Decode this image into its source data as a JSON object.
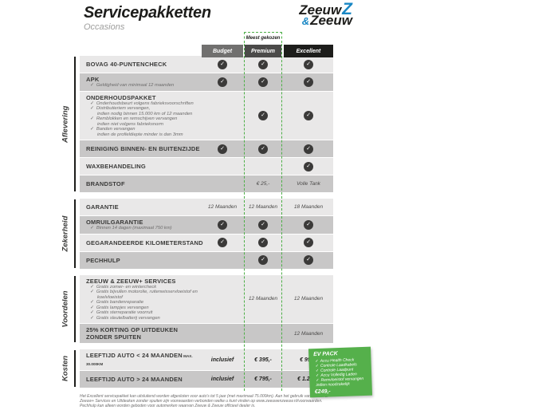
{
  "page": {
    "title": "Servicepakketten",
    "subtitle": "Occasions",
    "footer": "Het Excellent servicepakket kan uitsluitend worden afgesloten voor auto's tot 5 jaar (met maximaal 75.000km). Aan het gebruik van Zeeuw & Zeeuw+ Services en Uitdeuken zonder spuiten zijn voorwaarden verbonden welke u kunt vinden op www.zeeuwenzeeuw.nl/voorwaarden. Pechhulp kan alleen worden geboden voor automerken waarvan Zeeuw & Zeeuw officieel dealer is."
  },
  "logo": {
    "top_text": "Zeeuw",
    "z_mark": "Z",
    "amp": "&",
    "bottom_text": "Zeeuw",
    "blue": "#1987c4"
  },
  "colors": {
    "accent_green": "#4daf47",
    "light_row": "#e9e8e8",
    "dark_row": "#c8c7c7",
    "check_circle": "#3b3a39"
  },
  "table": {
    "badge": "Meest gekozen",
    "columns": [
      {
        "label": "Budget",
        "color": "#71706f"
      },
      {
        "label": "Premium",
        "color": "#4b4a49"
      },
      {
        "label": "Excellent",
        "color": "#1d1d1b"
      }
    ],
    "sections": [
      {
        "label": "Aflevering",
        "rows": [
          {
            "title": "BOVAG 40-PUNTENCHECK",
            "cells": [
              "check",
              "check",
              "check"
            ]
          },
          {
            "title": "APK",
            "subs": [
              [
                "Geldigheid van minimaal 12 maanden"
              ]
            ],
            "cells": [
              "check",
              "check",
              "check"
            ]
          },
          {
            "title": "ONDERHOUDSPAKKET",
            "subs": [
              [
                "Onderhoudsbeurt volgens fabrieksvoorschriften"
              ],
              [
                "Distributieriem vervangen,",
                "indien nodig binnen 15.000 km of 12 maanden"
              ],
              [
                "Remblokken en remschijven vervangen",
                "indien niet volgens fabrieksnorm"
              ],
              [
                "Banden vervangen",
                "indien de profieldiepte minder is dan 3mm"
              ]
            ],
            "cells": [
              "",
              "check",
              "check"
            ]
          },
          {
            "title": "REINIGING BINNEN- EN BUITENZIJDE",
            "cells": [
              "check",
              "check",
              "check"
            ]
          },
          {
            "title": "WAXBEHANDELING",
            "cells": [
              "",
              "",
              "check"
            ]
          },
          {
            "title": "BRANDSTOF",
            "cells": [
              "",
              "€ 25,-",
              "Volle Tank"
            ]
          }
        ]
      },
      {
        "label": "Zekerheid",
        "rows": [
          {
            "title": "GARANTIE",
            "cells": [
              "12 Maanden",
              "12 Maanden",
              "18 Maanden"
            ]
          },
          {
            "title": "OMRUILGARANTIE",
            "subs": [
              [
                "Binnen 14 dagen (maximaal 750 km)"
              ]
            ],
            "cells": [
              "check",
              "check",
              "check"
            ]
          },
          {
            "title": "GEGARANDEERDE KILOMETERSTAND",
            "cells": [
              "check",
              "check",
              "check"
            ]
          },
          {
            "title": "PECHHULP",
            "cells": [
              "",
              "check",
              "check"
            ]
          }
        ]
      },
      {
        "label": "Voordelen",
        "rows": [
          {
            "title": "ZEEUW & ZEEUW+ SERVICES",
            "subs": [
              [
                "Gratis zomer- en wintercheck"
              ],
              [
                "Gratis bijvullen motorolie, ruitenwisservloeistof en",
                "koelvloeistof"
              ],
              [
                "Gratis bandenreparatie"
              ],
              [
                "Gratis lampjes vervangen"
              ],
              [
                "Gratis sterreparatie voorruit"
              ],
              [
                "Gratis sleutelbatterij vervangen"
              ]
            ],
            "cells": [
              "",
              "12 Maanden",
              "12 Maanden"
            ]
          },
          {
            "title": "25% KORTING OP UITDEUKEN ZONDER SPUITEN",
            "cells": [
              "",
              "",
              "12 Maanden"
            ]
          }
        ]
      },
      {
        "label": "Kosten",
        "rows": [
          {
            "title": "LEEFTIJD AUTO < 24 MAANDEN",
            "suffix": "MAX. 30.000KM",
            "bold": true,
            "cells": [
              "inclusief",
              "€ 395,-",
              "€ 995,-"
            ]
          },
          {
            "title": "LEEFTIJD AUTO > 24 MAANDEN",
            "bold": true,
            "cells": [
              "inclusief",
              "€ 795,-",
              "€ 1.295,-"
            ]
          }
        ]
      }
    ]
  },
  "ev_pack": {
    "title": "EV PACK",
    "items": [
      "Accu Health Check",
      "Controle Laadkabels",
      "Controle Laadpunt",
      "Accu Volledig Laden",
      "Remvloeistof vervangen indien noodzakelijk"
    ],
    "price": "€249,-",
    "bg": "#55b04b"
  }
}
